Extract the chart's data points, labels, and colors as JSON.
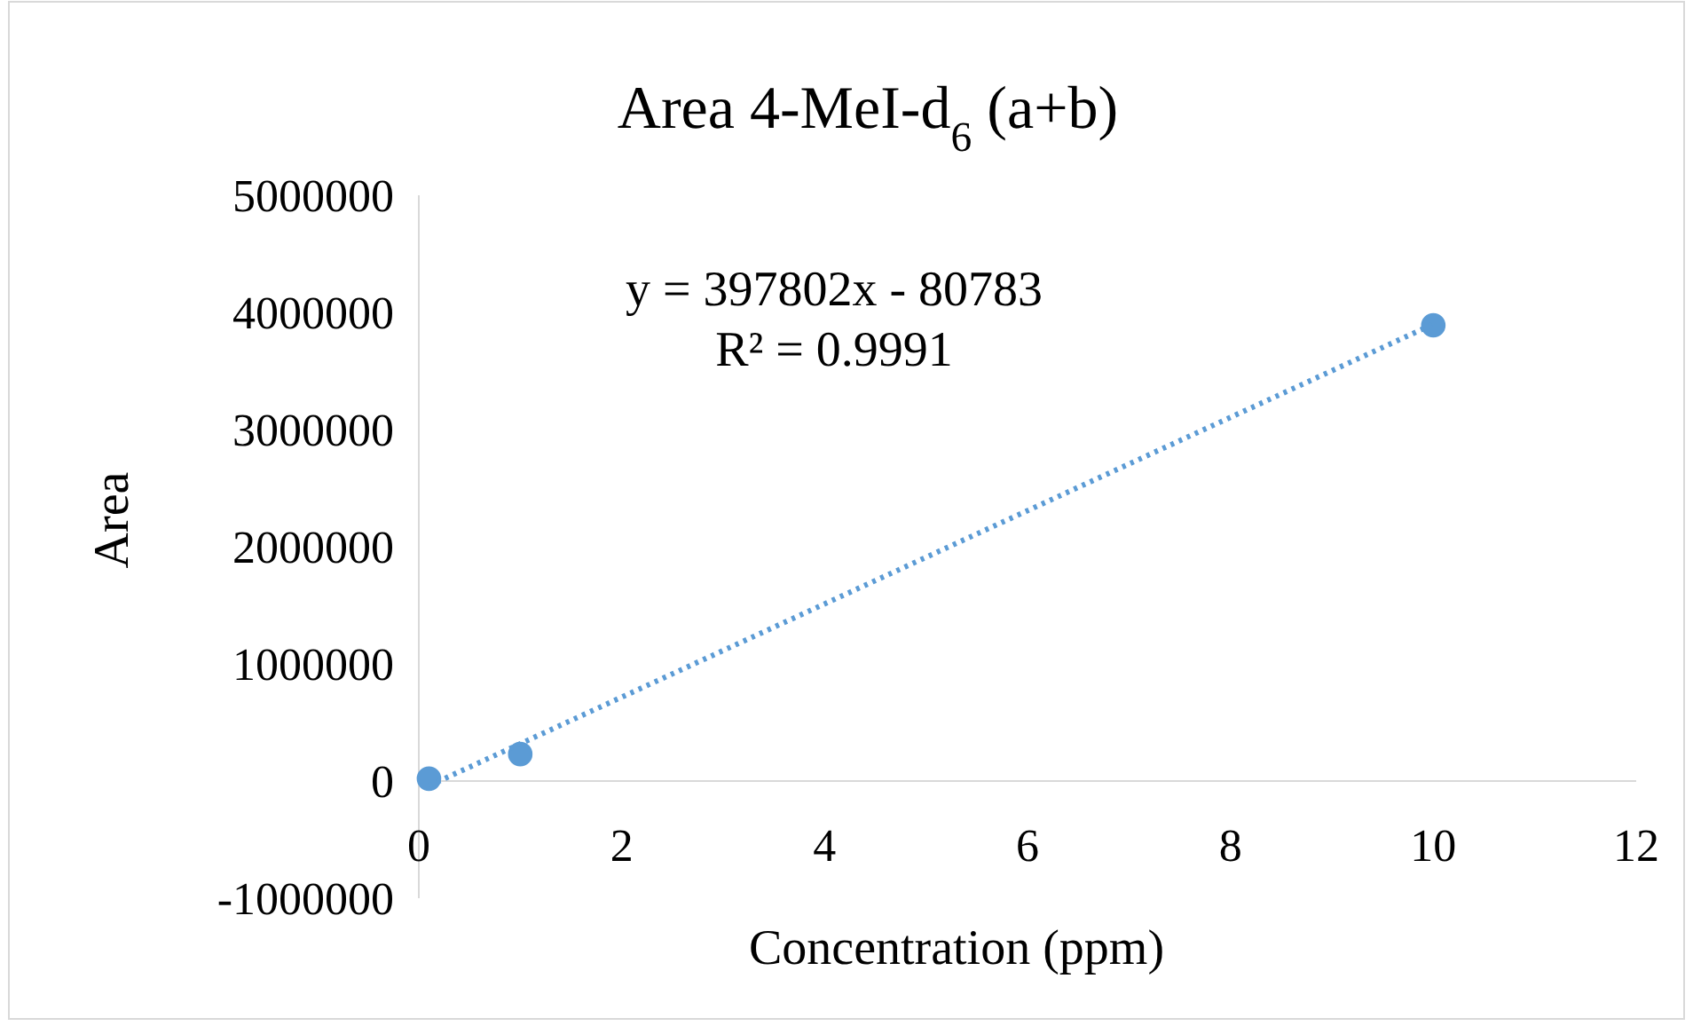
{
  "chart_data": {
    "type": "scatter",
    "title": "Area 4-MeI-d$_{6}$ (a+b)",
    "xlabel": "Concentration (ppm)",
    "ylabel": "Area",
    "xlim": [
      0,
      12
    ],
    "xticks": [
      0,
      2,
      4,
      6,
      8,
      10,
      12
    ],
    "ylim": [
      -1000000,
      5000000
    ],
    "yticks": [
      -1000000,
      0,
      1000000,
      2000000,
      3000000,
      4000000,
      5000000
    ],
    "series": [
      {
        "x": [
          0.1,
          1,
          10
        ],
        "values": [
          20000,
          230000,
          3890000
        ],
        "color": "#5b9bd5"
      },
      {
        "type": "line",
        "x": [
          0.1,
          10
        ],
        "values": [
          -40000,
          3900000
        ],
        "color": "#5b9bd5",
        "line_style": "dotted",
        "marker": "none"
      }
    ],
    "annotations": [
      "y = 397802x - 80783",
      "R² = 0.9991"
    ],
    "marker": "circle",
    "grid": false
  }
}
